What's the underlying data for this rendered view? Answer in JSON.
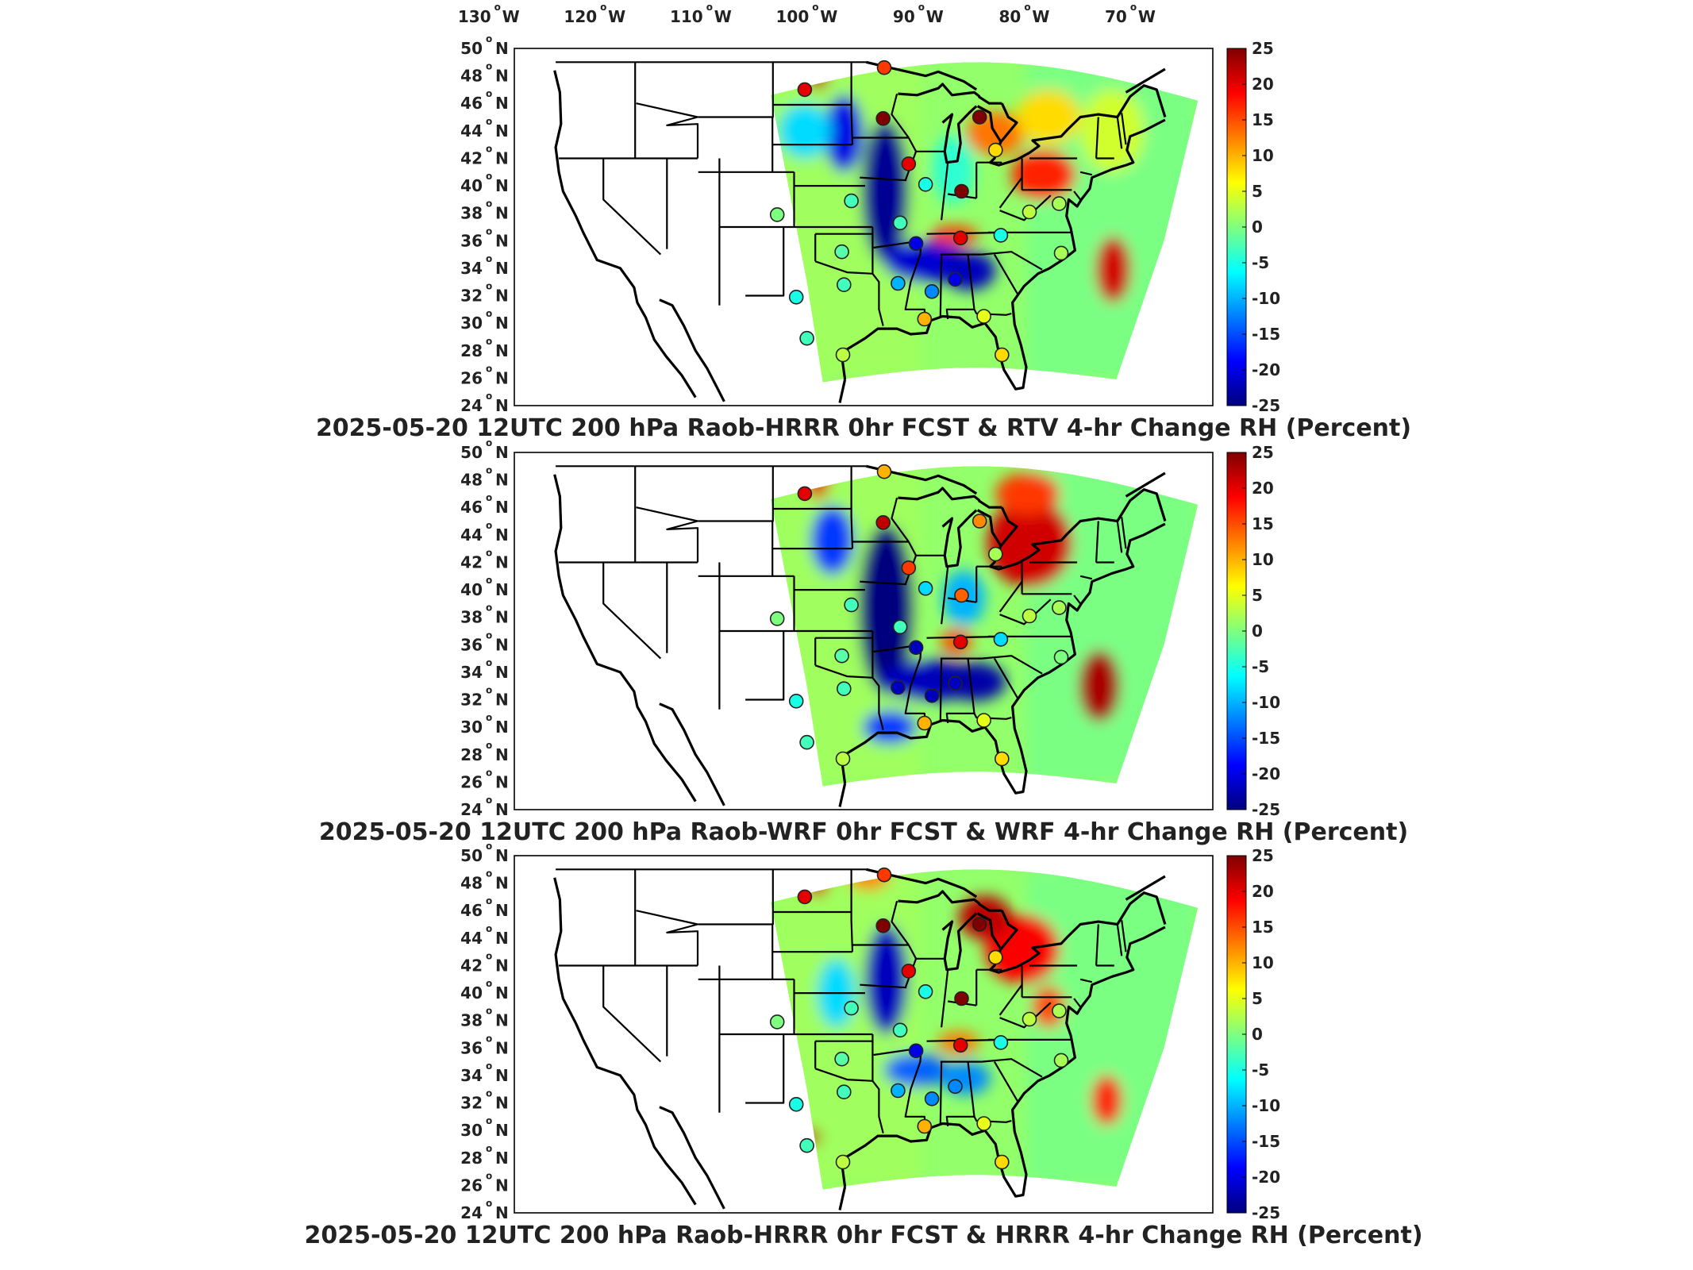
{
  "lon_labels": [
    "130",
    "120",
    "110",
    "100",
    "90",
    "80",
    "70"
  ],
  "lon_hemi": "W",
  "lat_labels": [
    "50",
    "48",
    "46",
    "44",
    "42",
    "40",
    "38",
    "36",
    "34",
    "32",
    "30",
    "28",
    "26",
    "24"
  ],
  "lat_hemi": "N",
  "degree_symbol": "o",
  "colorbar": {
    "ticks": [
      "25",
      "20",
      "15",
      "10",
      "5",
      "0",
      "-5",
      "-10",
      "-15",
      "-20",
      "-25"
    ],
    "range": [
      -25,
      25
    ],
    "colormap": "jet",
    "colors": [
      "#00007f",
      "#0000ff",
      "#007fff",
      "#00ffff",
      "#7fff7f",
      "#ffff00",
      "#ff7f00",
      "#ff0000",
      "#7f0000"
    ]
  },
  "panels": [
    {
      "title": "2025-05-20 12UTC 200 hPa Raob-HRRR 0hr FCST & RTV 4-hr Change RH (Percent)",
      "stations": [
        {
          "lon": -101,
          "lat": 47.0,
          "v": 20
        },
        {
          "lon": -93.5,
          "lat": 48.6,
          "v": 16
        },
        {
          "lon": -93.6,
          "lat": 44.9,
          "v": 25
        },
        {
          "lon": -84.5,
          "lat": 45.0,
          "v": 25
        },
        {
          "lon": -91.2,
          "lat": 41.6,
          "v": 20
        },
        {
          "lon": -83.0,
          "lat": 42.6,
          "v": 8
        },
        {
          "lon": -89.6,
          "lat": 40.1,
          "v": -5
        },
        {
          "lon": -86.2,
          "lat": 39.6,
          "v": 25
        },
        {
          "lon": -96.6,
          "lat": 38.9,
          "v": -3
        },
        {
          "lon": -103.6,
          "lat": 37.9,
          "v": 0
        },
        {
          "lon": -92.0,
          "lat": 37.3,
          "v": -3
        },
        {
          "lon": -97.5,
          "lat": 35.2,
          "v": -2
        },
        {
          "lon": -90.5,
          "lat": 35.8,
          "v": -20
        },
        {
          "lon": -86.3,
          "lat": 36.2,
          "v": 20
        },
        {
          "lon": -82.5,
          "lat": 36.4,
          "v": -5
        },
        {
          "lon": -79.8,
          "lat": 38.1,
          "v": 3
        },
        {
          "lon": -77.0,
          "lat": 38.7,
          "v": 2
        },
        {
          "lon": -76.8,
          "lat": 35.1,
          "v": 2
        },
        {
          "lon": -92.2,
          "lat": 32.9,
          "v": -10
        },
        {
          "lon": -97.3,
          "lat": 32.8,
          "v": -3
        },
        {
          "lon": -101.8,
          "lat": 31.9,
          "v": -5
        },
        {
          "lon": -89.0,
          "lat": 32.3,
          "v": -12
        },
        {
          "lon": -86.8,
          "lat": 33.2,
          "v": -20
        },
        {
          "lon": -84.1,
          "lat": 30.5,
          "v": 5
        },
        {
          "lon": -89.7,
          "lat": 30.3,
          "v": 10
        },
        {
          "lon": -97.4,
          "lat": 27.7,
          "v": 3
        },
        {
          "lon": -82.4,
          "lat": 27.7,
          "v": 8
        },
        {
          "lon": -100.8,
          "lat": 28.9,
          "v": -3
        }
      ]
    },
    {
      "title": "2025-05-20 12UTC 200 hPa Raob-WRF 0hr FCST & WRF 4-hr Change RH (Percent)",
      "stations": [
        {
          "lon": -101,
          "lat": 47.0,
          "v": 20
        },
        {
          "lon": -93.5,
          "lat": 48.6,
          "v": 10
        },
        {
          "lon": -93.6,
          "lat": 44.9,
          "v": 22
        },
        {
          "lon": -84.5,
          "lat": 45.0,
          "v": 12
        },
        {
          "lon": -91.2,
          "lat": 41.6,
          "v": 16
        },
        {
          "lon": -83.0,
          "lat": 42.6,
          "v": 2
        },
        {
          "lon": -89.6,
          "lat": 40.1,
          "v": -8
        },
        {
          "lon": -86.2,
          "lat": 39.6,
          "v": 14
        },
        {
          "lon": -96.6,
          "lat": 38.9,
          "v": -3
        },
        {
          "lon": -103.6,
          "lat": 37.9,
          "v": 0
        },
        {
          "lon": -92.0,
          "lat": 37.3,
          "v": -3
        },
        {
          "lon": -97.5,
          "lat": 35.2,
          "v": -2
        },
        {
          "lon": -90.5,
          "lat": 35.8,
          "v": -22
        },
        {
          "lon": -86.3,
          "lat": 36.2,
          "v": 20
        },
        {
          "lon": -82.5,
          "lat": 36.4,
          "v": -8
        },
        {
          "lon": -79.8,
          "lat": 38.1,
          "v": 3
        },
        {
          "lon": -77.0,
          "lat": 38.7,
          "v": 2
        },
        {
          "lon": -76.8,
          "lat": 35.1,
          "v": 0
        },
        {
          "lon": -92.2,
          "lat": 32.9,
          "v": -22
        },
        {
          "lon": -97.3,
          "lat": 32.8,
          "v": -3
        },
        {
          "lon": -101.8,
          "lat": 31.9,
          "v": -5
        },
        {
          "lon": -89.0,
          "lat": 32.3,
          "v": -22
        },
        {
          "lon": -86.8,
          "lat": 33.2,
          "v": -22
        },
        {
          "lon": -84.1,
          "lat": 30.5,
          "v": 5
        },
        {
          "lon": -89.7,
          "lat": 30.3,
          "v": 10
        },
        {
          "lon": -97.4,
          "lat": 27.7,
          "v": 3
        },
        {
          "lon": -82.4,
          "lat": 27.7,
          "v": 8
        },
        {
          "lon": -100.8,
          "lat": 28.9,
          "v": -3
        }
      ]
    },
    {
      "title": "2025-05-20 12UTC 200 hPa Raob-HRRR 0hr FCST & HRRR 4-hr Change RH (Percent)",
      "stations": [
        {
          "lon": -101,
          "lat": 47.0,
          "v": 20
        },
        {
          "lon": -93.5,
          "lat": 48.6,
          "v": 16
        },
        {
          "lon": -93.6,
          "lat": 44.9,
          "v": 25
        },
        {
          "lon": -84.5,
          "lat": 45.0,
          "v": 25
        },
        {
          "lon": -91.2,
          "lat": 41.6,
          "v": 20
        },
        {
          "lon": -83.0,
          "lat": 42.6,
          "v": 8
        },
        {
          "lon": -89.6,
          "lat": 40.1,
          "v": -5
        },
        {
          "lon": -86.2,
          "lat": 39.6,
          "v": 25
        },
        {
          "lon": -96.6,
          "lat": 38.9,
          "v": -3
        },
        {
          "lon": -103.6,
          "lat": 37.9,
          "v": 0
        },
        {
          "lon": -92.0,
          "lat": 37.3,
          "v": -3
        },
        {
          "lon": -97.5,
          "lat": 35.2,
          "v": -2
        },
        {
          "lon": -90.5,
          "lat": 35.8,
          "v": -20
        },
        {
          "lon": -86.3,
          "lat": 36.2,
          "v": 20
        },
        {
          "lon": -82.5,
          "lat": 36.4,
          "v": -5
        },
        {
          "lon": -79.8,
          "lat": 38.1,
          "v": 3
        },
        {
          "lon": -77.0,
          "lat": 38.7,
          "v": 2
        },
        {
          "lon": -76.8,
          "lat": 35.1,
          "v": 2
        },
        {
          "lon": -92.2,
          "lat": 32.9,
          "v": -10
        },
        {
          "lon": -97.3,
          "lat": 32.8,
          "v": -3
        },
        {
          "lon": -101.8,
          "lat": 31.9,
          "v": -5
        },
        {
          "lon": -89.0,
          "lat": 32.3,
          "v": -12
        },
        {
          "lon": -86.8,
          "lat": 33.2,
          "v": -12
        },
        {
          "lon": -84.1,
          "lat": 30.5,
          "v": 5
        },
        {
          "lon": -89.7,
          "lat": 30.3,
          "v": 10
        },
        {
          "lon": -97.4,
          "lat": 27.7,
          "v": 3
        },
        {
          "lon": -82.4,
          "lat": 27.7,
          "v": 8
        },
        {
          "lon": -100.8,
          "lat": 28.9,
          "v": -3
        }
      ]
    }
  ]
}
